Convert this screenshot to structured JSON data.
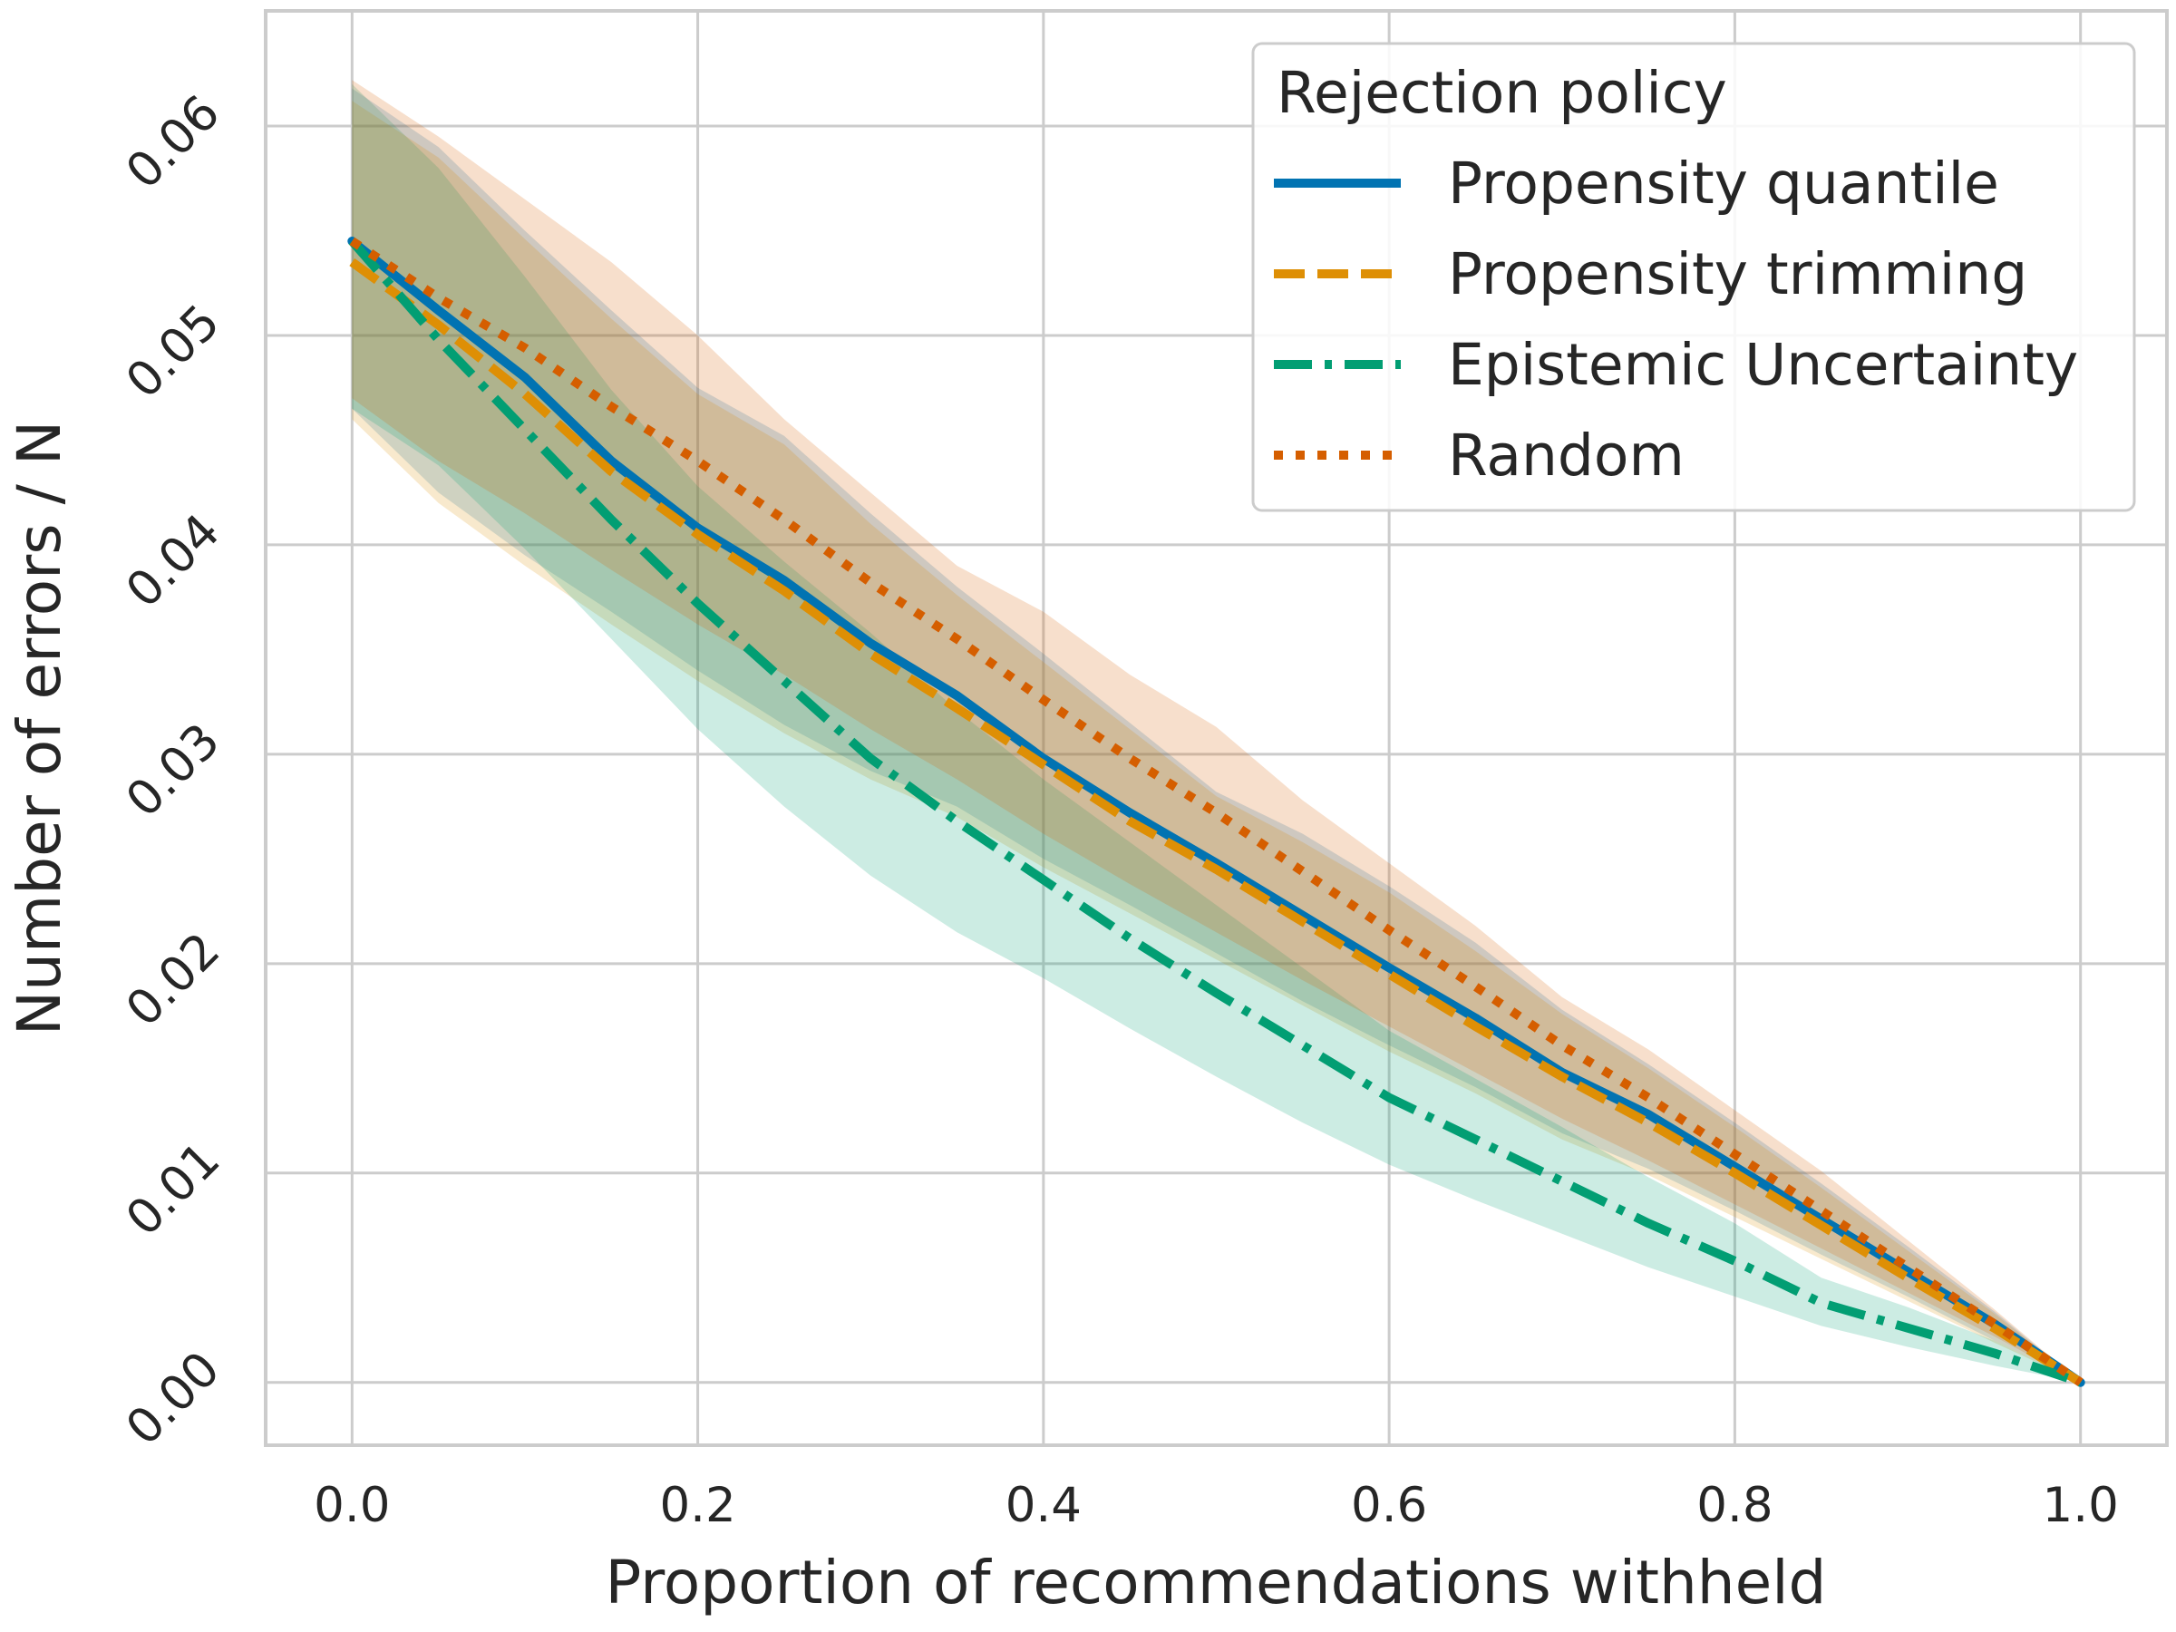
{
  "chart_data": {
    "type": "line",
    "xlabel": "Proportion of recommendations withheld",
    "ylabel": "Number of errors / N",
    "xlim": [
      -0.05,
      1.05
    ],
    "ylim": [
      -0.003,
      0.0655
    ],
    "xticks": [
      0.0,
      0.2,
      0.4,
      0.6,
      0.8,
      1.0
    ],
    "xtick_labels": [
      "0.0",
      "0.2",
      "0.4",
      "0.6",
      "0.8",
      "1.0"
    ],
    "yticks": [
      0.0,
      0.01,
      0.02,
      0.03,
      0.04,
      0.05,
      0.06
    ],
    "ytick_labels": [
      "0.00",
      "0.01",
      "0.02",
      "0.03",
      "0.04",
      "0.05",
      "0.06"
    ],
    "grid": true,
    "legend": {
      "title": "Rejection policy",
      "position": "top-right"
    },
    "series": [
      {
        "name": "Propensity quantile",
        "color": "#0173b2",
        "style": "solid",
        "x": [
          0,
          0.05,
          0.1,
          0.15,
          0.2,
          0.25,
          0.3,
          0.35,
          0.4,
          0.45,
          0.5,
          0.55,
          0.6,
          0.65,
          0.7,
          0.75,
          0.8,
          0.85,
          0.9,
          0.95,
          1.0
        ],
        "y": [
          0.0545,
          0.0512,
          0.048,
          0.044,
          0.0408,
          0.0383,
          0.0353,
          0.0328,
          0.0298,
          0.0272,
          0.0248,
          0.0223,
          0.0198,
          0.0174,
          0.0148,
          0.0128,
          0.0103,
          0.0078,
          0.0053,
          0.0028,
          0.0
        ]
      },
      {
        "name": "Propensity trimming",
        "color": "#de8f05",
        "style": "dashed",
        "x": [
          0,
          0.05,
          0.1,
          0.15,
          0.2,
          0.25,
          0.3,
          0.35,
          0.4,
          0.45,
          0.5,
          0.55,
          0.6,
          0.65,
          0.7,
          0.75,
          0.8,
          0.85,
          0.9,
          0.95,
          1.0
        ],
        "y": [
          0.0535,
          0.0505,
          0.0472,
          0.0435,
          0.0405,
          0.0378,
          0.0348,
          0.0322,
          0.0295,
          0.0268,
          0.0245,
          0.022,
          0.0195,
          0.017,
          0.0146,
          0.0124,
          0.01,
          0.0075,
          0.005,
          0.0026,
          0.0
        ]
      },
      {
        "name": "Epistemic Uncertainty",
        "color": "#029e73",
        "style": "dashdot",
        "x": [
          0,
          0.05,
          0.1,
          0.15,
          0.2,
          0.25,
          0.3,
          0.35,
          0.4,
          0.45,
          0.5,
          0.55,
          0.6,
          0.65,
          0.7,
          0.75,
          0.8,
          0.85,
          0.9,
          0.95,
          1.0
        ],
        "y": [
          0.0545,
          0.0498,
          0.0455,
          0.0412,
          0.0372,
          0.0335,
          0.0298,
          0.0268,
          0.024,
          0.0212,
          0.0186,
          0.0161,
          0.0136,
          0.0116,
          0.0096,
          0.0076,
          0.0058,
          0.0038,
          0.0026,
          0.0014,
          0.0
        ]
      },
      {
        "name": "Random",
        "color": "#d55e00",
        "style": "dotted",
        "x": [
          0,
          0.05,
          0.1,
          0.15,
          0.2,
          0.25,
          0.3,
          0.35,
          0.4,
          0.45,
          0.5,
          0.55,
          0.6,
          0.65,
          0.7,
          0.75,
          0.8,
          0.85,
          0.9,
          0.95,
          1.0
        ],
        "y": [
          0.0545,
          0.0518,
          0.0494,
          0.0466,
          0.044,
          0.0412,
          0.0382,
          0.0355,
          0.0326,
          0.0298,
          0.0272,
          0.0244,
          0.0216,
          0.0189,
          0.0161,
          0.0136,
          0.0109,
          0.0082,
          0.0055,
          0.0028,
          0.0
        ]
      }
    ],
    "bands": [
      {
        "name": "Propensity quantile",
        "color": "#0173b2",
        "x": [
          0,
          0.05,
          0.1,
          0.15,
          0.2,
          0.25,
          0.3,
          0.35,
          0.4,
          0.45,
          0.5,
          0.55,
          0.6,
          0.65,
          0.7,
          0.75,
          0.8,
          0.85,
          0.9,
          0.95,
          1.0
        ],
        "lower": [
          0.0465,
          0.0425,
          0.0395,
          0.0368,
          0.034,
          0.0314,
          0.0292,
          0.0275,
          0.025,
          0.0228,
          0.0205,
          0.0182,
          0.0161,
          0.0141,
          0.0119,
          0.0102,
          0.0082,
          0.0061,
          0.0041,
          0.002,
          0.0
        ],
        "upper": [
          0.0618,
          0.059,
          0.055,
          0.0512,
          0.0475,
          0.0452,
          0.0415,
          0.038,
          0.0348,
          0.0315,
          0.0282,
          0.0262,
          0.0237,
          0.021,
          0.0178,
          0.0152,
          0.0124,
          0.0095,
          0.0065,
          0.0034,
          0.0
        ]
      },
      {
        "name": "Propensity trimming",
        "color": "#de8f05",
        "x": [
          0,
          0.05,
          0.1,
          0.15,
          0.2,
          0.25,
          0.3,
          0.35,
          0.4,
          0.45,
          0.5,
          0.55,
          0.6,
          0.65,
          0.7,
          0.75,
          0.8,
          0.85,
          0.9,
          0.95,
          1.0
        ],
        "lower": [
          0.046,
          0.042,
          0.039,
          0.0362,
          0.0335,
          0.031,
          0.0288,
          0.027,
          0.0246,
          0.0224,
          0.0202,
          0.018,
          0.0158,
          0.0138,
          0.0116,
          0.0099,
          0.0079,
          0.0059,
          0.0039,
          0.0019,
          0.0
        ],
        "upper": [
          0.0612,
          0.0585,
          0.0546,
          0.0508,
          0.0472,
          0.0448,
          0.041,
          0.0376,
          0.0344,
          0.0312,
          0.028,
          0.0258,
          0.0234,
          0.0206,
          0.0176,
          0.015,
          0.0122,
          0.0093,
          0.0063,
          0.0033,
          0.0
        ]
      },
      {
        "name": "Epistemic Uncertainty",
        "color": "#029e73",
        "x": [
          0,
          0.05,
          0.1,
          0.15,
          0.2,
          0.25,
          0.3,
          0.35,
          0.4,
          0.45,
          0.5,
          0.55,
          0.6,
          0.65,
          0.7,
          0.75,
          0.8,
          0.85,
          0.9,
          0.95,
          1.0
        ],
        "lower": [
          0.0465,
          0.0438,
          0.0398,
          0.0355,
          0.0312,
          0.0275,
          0.0242,
          0.0215,
          0.0193,
          0.0169,
          0.0146,
          0.0124,
          0.0104,
          0.0087,
          0.0071,
          0.0055,
          0.0041,
          0.0027,
          0.0017,
          0.0008,
          0.0
        ],
        "upper": [
          0.062,
          0.058,
          0.0528,
          0.0474,
          0.0428,
          0.0392,
          0.0358,
          0.0321,
          0.0288,
          0.0258,
          0.0228,
          0.0198,
          0.0168,
          0.0145,
          0.0122,
          0.0098,
          0.0076,
          0.005,
          0.0036,
          0.002,
          0.0
        ]
      },
      {
        "name": "Random",
        "color": "#d55e00",
        "x": [
          0,
          0.05,
          0.1,
          0.15,
          0.2,
          0.25,
          0.3,
          0.35,
          0.4,
          0.45,
          0.5,
          0.55,
          0.6,
          0.65,
          0.7,
          0.75,
          0.8,
          0.85,
          0.9,
          0.95,
          1.0
        ],
        "lower": [
          0.047,
          0.044,
          0.0415,
          0.0388,
          0.0362,
          0.0338,
          0.0312,
          0.0288,
          0.0262,
          0.0238,
          0.0215,
          0.0192,
          0.017,
          0.0148,
          0.0126,
          0.0106,
          0.0085,
          0.0064,
          0.0043,
          0.0022,
          0.0
        ],
        "upper": [
          0.0622,
          0.0595,
          0.0565,
          0.0535,
          0.05,
          0.046,
          0.0425,
          0.039,
          0.0368,
          0.0338,
          0.0313,
          0.0278,
          0.0248,
          0.0218,
          0.0184,
          0.0159,
          0.013,
          0.0101,
          0.0068,
          0.0035,
          0.0
        ]
      }
    ]
  }
}
